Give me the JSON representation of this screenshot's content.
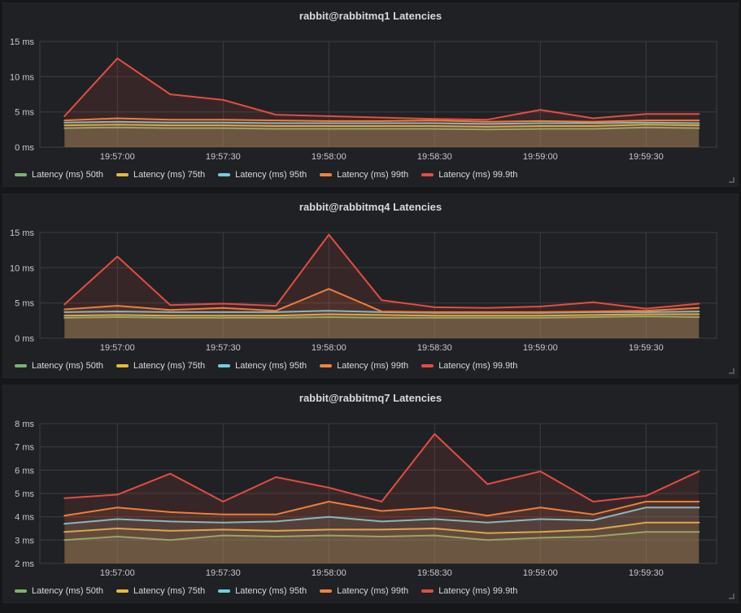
{
  "dashboard": {
    "bg": "#161719",
    "panel_bg": "#202124",
    "grid_color": "#3b3d41",
    "title_color": "#d8d9da",
    "tick_color": "#c7c8ca",
    "fill_opacity": 0.12
  },
  "chart_data": [
    {
      "type": "area",
      "title": "rabbit@rabbitmq1 Latencies",
      "ylabel": "",
      "ylim": [
        0,
        15
      ],
      "ytick_values": [
        0,
        5,
        10,
        15
      ],
      "ytick_labels": [
        "0 ms",
        "5 ms",
        "10 ms",
        "15 ms"
      ],
      "x_start_time": "19:56:45",
      "x_interval_seconds": 15,
      "x_domain_seconds": [
        -7,
        185
      ],
      "x_tick_seconds": [
        15,
        45,
        75,
        105,
        135,
        165
      ],
      "x_tick_labels": [
        "19:57:00",
        "19:57:30",
        "19:58:00",
        "19:58:30",
        "19:59:00",
        "19:59:30"
      ],
      "grid": true,
      "legend_position": "bottom",
      "series": [
        {
          "name": "Latency (ms) 50th",
          "color": "#7eb26d",
          "values": [
            2.7,
            2.8,
            2.7,
            2.7,
            2.6,
            2.6,
            2.6,
            2.6,
            2.5,
            2.6,
            2.6,
            2.8,
            2.7
          ]
        },
        {
          "name": "Latency (ms) 75th",
          "color": "#eab839",
          "values": [
            3.1,
            3.2,
            3.1,
            3.1,
            3.0,
            3.0,
            3.0,
            3.0,
            2.9,
            3.0,
            3.0,
            3.2,
            3.1
          ]
        },
        {
          "name": "Latency (ms) 95th",
          "color": "#6ed0e0",
          "values": [
            3.5,
            3.6,
            3.5,
            3.5,
            3.4,
            3.4,
            3.4,
            3.4,
            3.3,
            3.4,
            3.4,
            3.5,
            3.4
          ]
        },
        {
          "name": "Latency (ms) 99th",
          "color": "#ef843c",
          "values": [
            3.8,
            4.1,
            3.9,
            3.9,
            3.8,
            3.7,
            3.7,
            3.8,
            3.6,
            3.7,
            3.6,
            3.8,
            3.8
          ]
        },
        {
          "name": "Latency (ms) 99.9th",
          "color": "#e24d42",
          "values": [
            4.4,
            12.6,
            7.5,
            6.7,
            4.6,
            4.4,
            4.2,
            4.0,
            3.9,
            5.3,
            4.1,
            4.7,
            4.7
          ]
        }
      ]
    },
    {
      "type": "area",
      "title": "rabbit@rabbitmq4 Latencies",
      "ylabel": "",
      "ylim": [
        0,
        15
      ],
      "ytick_values": [
        0,
        5,
        10,
        15
      ],
      "ytick_labels": [
        "0 ms",
        "5 ms",
        "10 ms",
        "15 ms"
      ],
      "x_start_time": "19:56:45",
      "x_interval_seconds": 15,
      "x_domain_seconds": [
        -7,
        185
      ],
      "x_tick_seconds": [
        15,
        45,
        75,
        105,
        135,
        165
      ],
      "x_tick_labels": [
        "19:57:00",
        "19:57:30",
        "19:58:00",
        "19:58:30",
        "19:59:00",
        "19:59:30"
      ],
      "grid": true,
      "legend_position": "bottom",
      "series": [
        {
          "name": "Latency (ms) 50th",
          "color": "#7eb26d",
          "values": [
            2.9,
            3.0,
            2.9,
            2.9,
            2.9,
            3.0,
            2.9,
            2.9,
            2.9,
            2.9,
            3.0,
            3.1,
            3.0
          ]
        },
        {
          "name": "Latency (ms) 75th",
          "color": "#eab839",
          "values": [
            3.2,
            3.3,
            3.2,
            3.2,
            3.2,
            3.4,
            3.3,
            3.2,
            3.2,
            3.2,
            3.3,
            3.4,
            3.4
          ]
        },
        {
          "name": "Latency (ms) 95th",
          "color": "#6ed0e0",
          "values": [
            3.7,
            3.8,
            3.7,
            3.7,
            3.7,
            3.9,
            3.7,
            3.6,
            3.6,
            3.6,
            3.7,
            3.7,
            3.8
          ]
        },
        {
          "name": "Latency (ms) 99th",
          "color": "#ef843c",
          "values": [
            4.1,
            4.6,
            4.0,
            4.3,
            3.9,
            7.0,
            3.8,
            3.7,
            3.7,
            3.7,
            3.8,
            3.9,
            4.3
          ]
        },
        {
          "name": "Latency (ms) 99.9th",
          "color": "#e24d42",
          "values": [
            4.8,
            11.6,
            4.7,
            4.9,
            4.6,
            14.7,
            5.4,
            4.4,
            4.3,
            4.5,
            5.1,
            4.2,
            4.9
          ]
        }
      ]
    },
    {
      "type": "area",
      "title": "rabbit@rabbitmq7 Latencies",
      "ylabel": "",
      "ylim": [
        2,
        8
      ],
      "ytick_values": [
        2,
        3,
        4,
        5,
        6,
        7,
        8
      ],
      "ytick_labels": [
        "2 ms",
        "3 ms",
        "4 ms",
        "5 ms",
        "6 ms",
        "7 ms",
        "8 ms"
      ],
      "x_start_time": "19:56:45",
      "x_interval_seconds": 15,
      "x_domain_seconds": [
        -7,
        185
      ],
      "x_tick_seconds": [
        15,
        45,
        75,
        105,
        135,
        165
      ],
      "x_tick_labels": [
        "19:57:00",
        "19:57:30",
        "19:58:00",
        "19:58:30",
        "19:59:00",
        "19:59:30"
      ],
      "grid": true,
      "legend_position": "bottom",
      "series": [
        {
          "name": "Latency (ms) 50th",
          "color": "#7eb26d",
          "values": [
            3.0,
            3.15,
            3.0,
            3.2,
            3.15,
            3.2,
            3.15,
            3.2,
            3.0,
            3.1,
            3.15,
            3.35,
            3.35
          ]
        },
        {
          "name": "Latency (ms) 75th",
          "color": "#eab839",
          "values": [
            3.35,
            3.5,
            3.4,
            3.45,
            3.4,
            3.45,
            3.45,
            3.5,
            3.3,
            3.35,
            3.45,
            3.75,
            3.75
          ]
        },
        {
          "name": "Latency (ms) 95th",
          "color": "#6ed0e0",
          "values": [
            3.7,
            3.9,
            3.8,
            3.75,
            3.8,
            4.0,
            3.8,
            3.9,
            3.75,
            3.9,
            3.85,
            4.4,
            4.4
          ]
        },
        {
          "name": "Latency (ms) 99th",
          "color": "#ef843c",
          "values": [
            4.05,
            4.4,
            4.2,
            4.1,
            4.1,
            4.65,
            4.25,
            4.4,
            4.05,
            4.4,
            4.1,
            4.65,
            4.65
          ]
        },
        {
          "name": "Latency (ms) 99.9th",
          "color": "#e24d42",
          "values": [
            4.8,
            4.95,
            5.85,
            4.65,
            5.7,
            5.25,
            4.65,
            7.55,
            5.4,
            5.95,
            4.65,
            4.9,
            5.95
          ]
        }
      ]
    }
  ]
}
